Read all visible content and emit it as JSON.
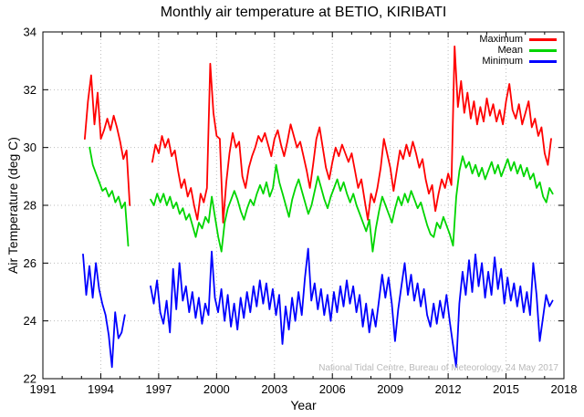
{
  "chart_data": {
    "type": "line",
    "title": "Monthly air temperature at BETIO, KIRIBATI",
    "xlabel": "Year",
    "ylabel": "Air Temperature (deg C)",
    "xlim": [
      1991,
      2018
    ],
    "ylim": [
      22,
      34
    ],
    "xticks_major": [
      1991,
      1994,
      1997,
      2000,
      2003,
      2006,
      2009,
      2012,
      2015,
      2018
    ],
    "xticks_minor_step": 1,
    "yticks": [
      22,
      24,
      26,
      28,
      30,
      32,
      34
    ],
    "grid": "dotted",
    "grid_color": "#bdbdbd",
    "axis_color": "#000000",
    "legend_position": "top-right",
    "watermark": "National Tidal Centre, Bureau of Meteorology, 24 May 2017",
    "series": [
      {
        "name": "Maximum",
        "color": "#ff0000",
        "start": 1993.17,
        "step": 0.166667,
        "values": [
          30.3,
          31.6,
          32.5,
          30.8,
          31.9,
          30.3,
          30.6,
          31.0,
          30.6,
          31.1,
          30.7,
          30.2,
          29.6,
          29.9,
          28.0,
          null,
          null,
          null,
          null,
          null,
          null,
          29.5,
          30.1,
          29.8,
          30.4,
          30.0,
          30.3,
          29.7,
          29.9,
          29.2,
          28.6,
          28.9,
          28.3,
          28.6,
          28.0,
          27.5,
          28.4,
          28.1,
          28.6,
          32.9,
          31.2,
          30.4,
          30.3,
          27.4,
          28.8,
          29.8,
          30.5,
          30.0,
          30.2,
          29.0,
          28.6,
          29.3,
          29.7,
          30.0,
          30.4,
          30.2,
          30.5,
          30.1,
          29.7,
          30.3,
          30.6,
          30.1,
          29.7,
          30.2,
          30.8,
          30.4,
          30.0,
          30.2,
          29.7,
          29.2,
          28.6,
          29.4,
          30.3,
          30.7,
          30.0,
          29.3,
          28.9,
          29.5,
          30.0,
          29.7,
          30.1,
          29.8,
          29.5,
          29.8,
          29.2,
          28.6,
          28.9,
          28.2,
          27.5,
          28.4,
          28.1,
          28.6,
          29.3,
          30.3,
          29.8,
          29.3,
          28.5,
          29.2,
          29.9,
          29.6,
          30.1,
          29.7,
          30.2,
          29.8,
          29.3,
          29.6,
          28.9,
          28.4,
          28.7,
          27.8,
          28.4,
          28.9,
          28.6,
          29.1,
          28.7,
          33.5,
          31.4,
          32.3,
          31.2,
          31.9,
          31.0,
          31.6,
          30.8,
          31.4,
          30.9,
          31.7,
          31.1,
          31.5,
          30.9,
          31.3,
          30.8,
          31.6,
          32.2,
          31.3,
          31.0,
          31.5,
          30.8,
          31.2,
          31.6,
          30.7,
          31.0,
          30.4,
          30.7,
          29.8,
          29.4,
          30.3
        ]
      },
      {
        "name": "Mean",
        "color": "#00d500",
        "start": 1993.42,
        "step": 0.166667,
        "values": [
          30.0,
          29.4,
          29.1,
          28.8,
          28.5,
          28.6,
          28.3,
          28.5,
          28.1,
          28.3,
          27.9,
          28.1,
          26.6,
          null,
          null,
          null,
          null,
          null,
          null,
          28.2,
          28.0,
          28.4,
          28.1,
          28.4,
          28.0,
          28.3,
          27.9,
          28.1,
          27.7,
          27.9,
          27.5,
          27.7,
          27.3,
          26.9,
          27.4,
          27.2,
          27.6,
          27.4,
          28.3,
          27.6,
          26.9,
          26.4,
          27.4,
          27.9,
          28.2,
          28.5,
          28.2,
          27.8,
          27.5,
          27.9,
          28.2,
          28.0,
          28.4,
          28.7,
          28.4,
          28.8,
          28.3,
          28.6,
          29.4,
          28.8,
          28.4,
          28.0,
          27.6,
          28.2,
          28.6,
          28.9,
          28.5,
          28.1,
          27.7,
          28.0,
          28.5,
          29.0,
          28.6,
          28.2,
          27.9,
          28.3,
          28.6,
          28.9,
          28.5,
          28.8,
          28.4,
          28.1,
          28.4,
          28.0,
          27.7,
          27.4,
          27.1,
          27.5,
          26.4,
          27.2,
          27.8,
          28.3,
          28.0,
          27.7,
          27.4,
          27.9,
          28.3,
          28.0,
          28.4,
          28.1,
          28.5,
          28.2,
          27.9,
          28.1,
          27.7,
          27.3,
          27.0,
          26.9,
          27.4,
          27.2,
          27.6,
          27.3,
          27.0,
          26.6,
          28.3,
          29.2,
          29.7,
          29.3,
          29.5,
          29.1,
          29.4,
          29.0,
          29.3,
          28.9,
          29.2,
          29.5,
          29.1,
          29.4,
          29.0,
          29.3,
          29.6,
          29.2,
          29.5,
          29.1,
          29.4,
          29.0,
          29.3,
          28.9,
          29.1,
          28.6,
          28.8,
          28.3,
          28.1,
          28.6,
          28.4
        ]
      },
      {
        "name": "Minimum",
        "color": "#0000ff",
        "start": 1993.08,
        "step": 0.166667,
        "values": [
          26.3,
          24.9,
          25.9,
          24.8,
          26.0,
          25.1,
          24.6,
          24.2,
          23.5,
          22.4,
          24.3,
          23.4,
          23.6,
          24.2,
          null,
          null,
          null,
          null,
          null,
          null,
          null,
          25.2,
          24.6,
          25.4,
          24.3,
          23.9,
          24.7,
          23.6,
          25.8,
          24.4,
          26.0,
          24.7,
          25.2,
          24.3,
          25.0,
          24.1,
          24.8,
          23.9,
          24.6,
          24.2,
          26.4,
          24.8,
          24.3,
          25.1,
          24.0,
          24.9,
          23.8,
          24.6,
          23.7,
          24.8,
          24.1,
          25.0,
          24.3,
          25.2,
          24.5,
          25.4,
          24.6,
          25.3,
          24.4,
          25.1,
          24.2,
          24.9,
          23.2,
          24.5,
          23.7,
          24.8,
          24.0,
          25.0,
          24.2,
          25.5,
          26.5,
          24.7,
          25.3,
          24.4,
          25.1,
          24.2,
          24.9,
          24.0,
          25.0,
          24.3,
          25.2,
          24.5,
          25.4,
          24.6,
          25.2,
          24.3,
          24.9,
          23.8,
          24.6,
          23.6,
          24.4,
          23.8,
          24.7,
          25.6,
          24.8,
          25.5,
          24.6,
          23.3,
          24.4,
          25.2,
          26.0,
          24.9,
          25.6,
          24.7,
          25.3,
          24.5,
          25.1,
          24.2,
          23.8,
          24.6,
          23.9,
          24.7,
          24.1,
          24.9,
          24.0,
          23.2,
          22.4,
          24.6,
          25.7,
          24.9,
          26.1,
          25.0,
          26.3,
          25.2,
          26.0,
          24.8,
          25.7,
          24.9,
          26.2,
          25.1,
          25.8,
          24.6,
          25.5,
          24.7,
          25.3,
          24.5,
          25.2,
          24.3,
          25.0,
          24.2,
          26.0,
          24.9,
          23.3,
          24.1,
          24.9,
          24.5,
          24.7
        ]
      }
    ]
  }
}
